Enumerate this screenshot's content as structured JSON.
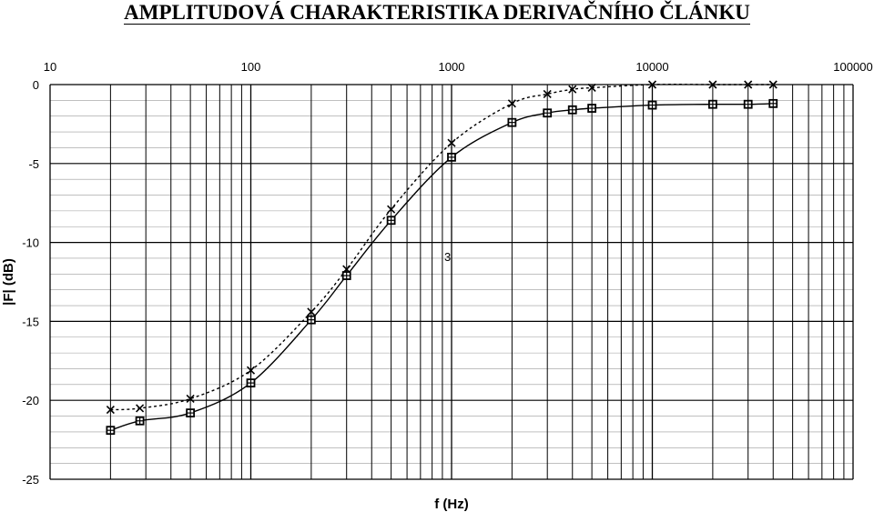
{
  "chart_data": {
    "type": "line",
    "title": "AMPLITUDOVÁ CHARAKTERISTIKA DERIVAČNÍHO ČLÁNKU",
    "xlabel": "f (Hz)",
    "ylabel": "|F| (dB)",
    "x_scale": "log",
    "xlim": [
      10,
      100000
    ],
    "ylim": [
      -25,
      0
    ],
    "x_ticks": [
      "10",
      "100",
      "1000",
      "10000",
      "100000"
    ],
    "y_ticks": [
      "0",
      "-5",
      "-10",
      "-15",
      "-20",
      "-25"
    ],
    "x_axis_position": "top",
    "grid": true,
    "series": [
      {
        "marker": "square",
        "line_style": "solid",
        "x": [
          20,
          28,
          50,
          100,
          200,
          300,
          500,
          1000,
          2000,
          3000,
          4000,
          5000,
          10000,
          20000,
          30000,
          40000
        ],
        "values": [
          -21.9,
          -21.3,
          -20.8,
          -18.9,
          -14.9,
          -12.1,
          -8.6,
          -4.6,
          -2.4,
          -1.8,
          -1.6,
          -1.5,
          -1.3,
          -1.25,
          -1.25,
          -1.2
        ]
      },
      {
        "marker": "x",
        "line_style": "dotted",
        "x": [
          20,
          28,
          50,
          100,
          200,
          300,
          500,
          1000,
          2000,
          3000,
          4000,
          5000,
          10000,
          20000,
          30000,
          40000
        ],
        "values": [
          -20.6,
          -20.5,
          -19.9,
          -18.1,
          -14.4,
          -11.7,
          -7.9,
          -3.7,
          -1.2,
          -0.6,
          -0.3,
          -0.2,
          0,
          0,
          0,
          0
        ]
      }
    ],
    "annotations": [
      {
        "text": "3",
        "x": 1000,
        "y": -10.9
      }
    ]
  }
}
